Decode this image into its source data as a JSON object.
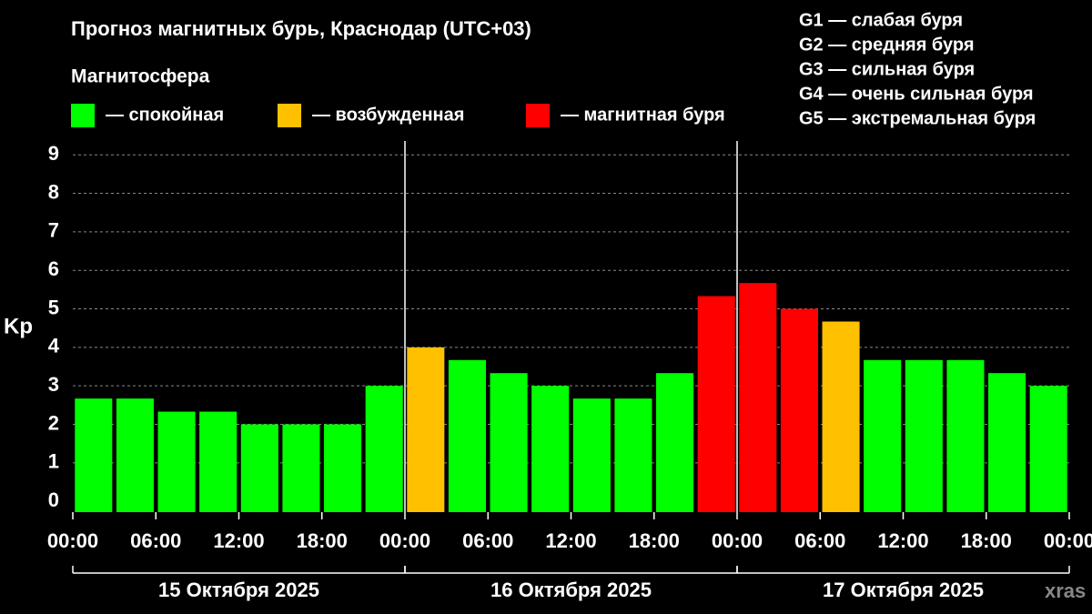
{
  "chart_data": {
    "type": "bar",
    "title": "Прогноз магнитных бурь, Краснодар (UTC+03)",
    "y_label": "Kp",
    "legend_title": "Магнитосфера",
    "legend": [
      {
        "label": "— спокойная",
        "color": "#00ff00"
      },
      {
        "label": "— возбужденная",
        "color": "#ffc000"
      },
      {
        "label": "— магнитная буря",
        "color": "#ff0000"
      }
    ],
    "storm_levels": [
      "G1 — слабая буря",
      "G2 — средняя буря",
      "G3 — сильная буря",
      "G4 — очень сильная буря",
      "G5 — экстремальная буря"
    ],
    "x": [
      0,
      3,
      6,
      9,
      12,
      15,
      18,
      21,
      24,
      27,
      30,
      33,
      36,
      39,
      42,
      45,
      48,
      51,
      54,
      57,
      60,
      63,
      66,
      69
    ],
    "values": [
      2.67,
      2.67,
      2.33,
      2.33,
      2,
      2,
      2,
      3,
      4,
      3.67,
      3.33,
      3,
      2.67,
      2.67,
      3.33,
      5.33,
      5.67,
      5,
      4.67,
      3.67,
      3.67,
      3.67,
      3.33,
      3
    ],
    "colors": [
      "#00ff00",
      "#00ff00",
      "#00ff00",
      "#00ff00",
      "#00ff00",
      "#00ff00",
      "#00ff00",
      "#00ff00",
      "#ffc000",
      "#00ff00",
      "#00ff00",
      "#00ff00",
      "#00ff00",
      "#00ff00",
      "#00ff00",
      "#ff0000",
      "#ff0000",
      "#ff0000",
      "#ffc000",
      "#00ff00",
      "#00ff00",
      "#00ff00",
      "#00ff00",
      "#00ff00"
    ],
    "xlim": [
      0,
      72
    ],
    "xticks": [
      {
        "value": 0,
        "label": "00:00"
      },
      {
        "value": 6,
        "label": "06:00"
      },
      {
        "value": 12,
        "label": "12:00"
      },
      {
        "value": 18,
        "label": "18:00"
      },
      {
        "value": 24,
        "label": "00:00"
      },
      {
        "value": 30,
        "label": "06:00"
      },
      {
        "value": 36,
        "label": "12:00"
      },
      {
        "value": 42,
        "label": "18:00"
      },
      {
        "value": 48,
        "label": "00:00"
      },
      {
        "value": 54,
        "label": "06:00"
      },
      {
        "value": 60,
        "label": "12:00"
      },
      {
        "value": 66,
        "label": "18:00"
      },
      {
        "value": 72,
        "label": "00:00"
      }
    ],
    "ylim": [
      -0.28,
      9.36
    ],
    "yticks": [
      0,
      1,
      2,
      3,
      4,
      5,
      6,
      7,
      8,
      9
    ],
    "grid": true,
    "days": [
      {
        "label": "15 Октября 2025",
        "range": [
          0,
          24
        ]
      },
      {
        "label": "16 Октября 2025",
        "range": [
          24,
          48
        ]
      },
      {
        "label": "17 Октября 2025",
        "range": [
          48,
          72
        ]
      }
    ],
    "watermark": "xras"
  }
}
